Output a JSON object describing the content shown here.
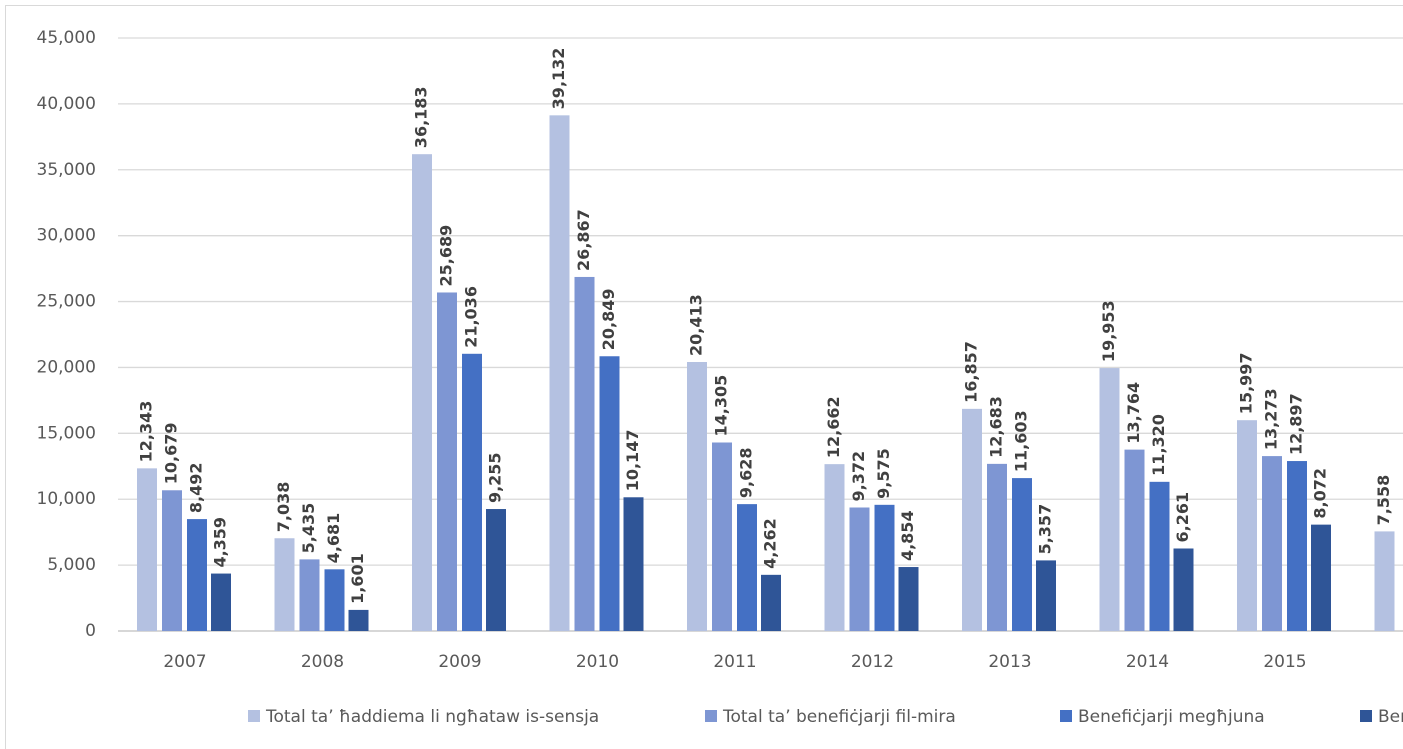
{
  "chart_data": {
    "type": "bar",
    "categories": [
      "2007",
      "2008",
      "2009",
      "2010",
      "2011",
      "2012",
      "2013",
      "2014",
      "2015",
      null
    ],
    "series": [
      {
        "name": "Total ta’ ħaddiema li ngħataw is-sensja",
        "color": "#b4c1e1",
        "values": [
          12343,
          7038,
          36183,
          39132,
          20413,
          12662,
          16857,
          19953,
          15997,
          7558
        ],
        "value_labels": [
          "12,343",
          "7,038",
          "36,183",
          "39,132",
          "20,413",
          "12,662",
          "16,857",
          "19,953",
          "15,997",
          "7,558"
        ]
      },
      {
        "name": "Total ta’ benefiċjarji fil-mira",
        "color": "#7e96d3",
        "values": [
          10679,
          5435,
          25689,
          26867,
          14305,
          9372,
          12683,
          13764,
          13273,
          null
        ],
        "value_labels": [
          "10,679",
          "5,435",
          "25,689",
          "26,867",
          "14,305",
          "9,372",
          "12,683",
          "13,764",
          "13,273",
          null
        ]
      },
      {
        "name": "Benefiċjarji megħjuna",
        "color": "#4470c4",
        "values": [
          8492,
          4681,
          21036,
          20849,
          9628,
          9575,
          11603,
          11320,
          12897,
          null
        ],
        "value_labels": [
          "8,492",
          "4,681",
          "21,036",
          "20,849",
          "9,628",
          "9,575",
          "11,603",
          "11,320",
          "12,897",
          null
        ]
      },
      {
        "name": "Ben",
        "color": "#2f5597",
        "values": [
          4359,
          1601,
          9255,
          10147,
          4262,
          4854,
          5357,
          6261,
          8072,
          null
        ],
        "value_labels": [
          "4,359",
          "1,601",
          "9,255",
          "10,147",
          "4,262",
          "4,854",
          "5,357",
          "6,261",
          "8,072",
          null
        ]
      }
    ],
    "ylim": [
      0,
      45000
    ],
    "yticks": [
      0,
      {
        "value": 5000,
        "label": "5,000"
      },
      {
        "value": 10000,
        "label": "10,000"
      },
      {
        "value": 15000,
        "label": "15,000"
      },
      {
        "value": 20000,
        "label": "20,000"
      },
      {
        "value": 25000,
        "label": "25,000"
      },
      {
        "value": 30000,
        "label": "30,000"
      },
      {
        "value": 35000,
        "label": "35,000"
      },
      {
        "value": 40000,
        "label": "40,000"
      },
      {
        "value": 45000,
        "label": "45,000"
      }
    ],
    "grid": true,
    "legend": "bottom"
  }
}
